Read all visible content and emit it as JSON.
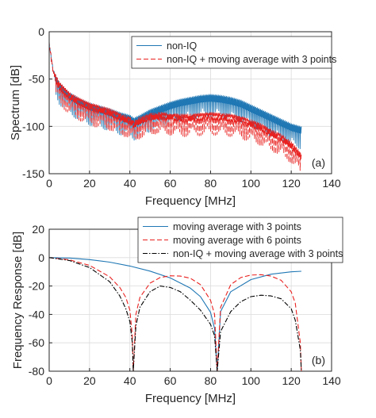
{
  "chart_data": [
    {
      "type": "line",
      "panel_label": "(a)",
      "xlabel": "Frequency [MHz]",
      "ylabel": "Spectrum [dB]",
      "xlim": [
        0,
        140
      ],
      "ylim": [
        -150,
        0
      ],
      "xticks": [
        0,
        20,
        40,
        60,
        80,
        100,
        120,
        140
      ],
      "yticks": [
        0,
        -50,
        -100,
        -150
      ],
      "grid": true,
      "legend_position": "top-right",
      "series": [
        {
          "name": "non-IQ",
          "color": "#1f77b4",
          "style": "solid",
          "x": [
            0,
            2,
            5,
            10,
            15,
            20,
            25,
            30,
            35,
            40,
            42,
            45,
            50,
            55,
            60,
            65,
            70,
            75,
            80,
            85,
            90,
            95,
            100,
            105,
            110,
            115,
            120,
            125
          ],
          "y": [
            -12,
            -42,
            -55,
            -66,
            -72,
            -77,
            -80,
            -83,
            -87,
            -90,
            -93,
            -90,
            -84,
            -80,
            -76,
            -73,
            -71,
            -69,
            -68,
            -69,
            -71,
            -74,
            -79,
            -84,
            -89,
            -94,
            -99,
            -102
          ],
          "ripple_db": 22
        },
        {
          "name": "non-IQ + moving average with 3 points",
          "color": "#e8211f",
          "style": "dashed",
          "x": [
            0,
            2,
            5,
            10,
            15,
            20,
            25,
            30,
            35,
            40,
            42,
            45,
            50,
            55,
            60,
            65,
            70,
            75,
            80,
            85,
            90,
            95,
            100,
            105,
            110,
            115,
            120,
            125
          ],
          "y": [
            -12,
            -42,
            -55,
            -66,
            -72,
            -77,
            -80,
            -83,
            -88,
            -92,
            -96,
            -92,
            -88,
            -87,
            -88,
            -89,
            -89,
            -88,
            -87,
            -88,
            -89,
            -91,
            -95,
            -99,
            -105,
            -110,
            -118,
            -130
          ],
          "ripple_db": 22
        }
      ]
    },
    {
      "type": "line",
      "panel_label": "(b)",
      "xlabel": "Frequency [MHz]",
      "ylabel": "Frequency Response [dB]",
      "xlim": [
        0,
        140
      ],
      "ylim": [
        -80,
        20
      ],
      "xticks": [
        0,
        20,
        40,
        60,
        80,
        100,
        120,
        140
      ],
      "yticks": [
        20,
        0,
        -20,
        -40,
        -60,
        -80
      ],
      "grid": true,
      "legend_position": "top-right",
      "series": [
        {
          "name": "moving average with 3 points",
          "color": "#1f77b4",
          "style": "solid",
          "x": [
            0,
            10,
            20,
            30,
            40,
            50,
            60,
            70,
            75,
            80,
            82,
            83.3,
            85,
            90,
            100,
            110,
            120,
            125
          ],
          "y": [
            0,
            -0.3,
            -1.4,
            -3.2,
            -5.9,
            -9.5,
            -14.3,
            -21.5,
            -27.5,
            -38.5,
            -50,
            -80,
            -38,
            -24,
            -15.5,
            -11.7,
            -10,
            -9.6
          ]
        },
        {
          "name": "moving average with 6 points",
          "color": "#e8211f",
          "style": "dashed",
          "x": [
            0,
            10,
            20,
            30,
            35,
            38,
            40,
            41.2,
            41.7,
            43,
            45,
            50,
            55,
            60,
            65,
            70,
            75,
            80,
            82,
            83.3,
            85,
            90,
            95,
            100,
            105,
            110,
            115,
            120,
            122,
            124.5,
            125
          ],
          "y": [
            0,
            -1.5,
            -5.5,
            -13.5,
            -21,
            -28,
            -37,
            -55,
            -80,
            -40,
            -28,
            -18,
            -14,
            -12.8,
            -13,
            -14.5,
            -19,
            -30,
            -40,
            -80,
            -35,
            -19,
            -14,
            -12.3,
            -12,
            -13,
            -16,
            -24,
            -32,
            -60,
            -80
          ]
        },
        {
          "name": "non-IQ + moving average with 3 points",
          "color": "#000000",
          "style": "dashdot",
          "x": [
            0,
            10,
            20,
            30,
            35,
            38,
            40,
            41.2,
            41.7,
            43,
            45,
            50,
            55,
            60,
            65,
            70,
            75,
            80,
            82,
            83.3,
            85,
            90,
            95,
            100,
            105,
            110,
            115,
            120,
            122,
            124.5,
            125
          ],
          "y": [
            0,
            -2,
            -7,
            -17,
            -27,
            -36,
            -45,
            -60,
            -80,
            -48,
            -35,
            -24,
            -20,
            -21,
            -24,
            -30,
            -37,
            -47,
            -55,
            -80,
            -52,
            -38,
            -31,
            -27.5,
            -26.5,
            -27,
            -29,
            -36,
            -44,
            -65,
            -80
          ]
        }
      ]
    }
  ]
}
